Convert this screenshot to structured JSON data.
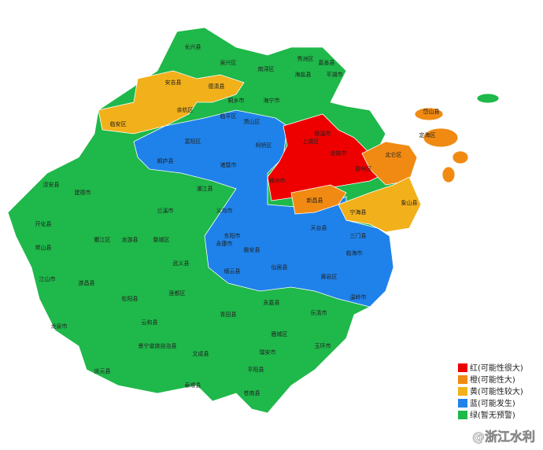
{
  "legend": [
    {
      "color": "#ee0000",
      "label": "红(可能性很大)"
    },
    {
      "color": "#f08a12",
      "label": "橙(可能性大)"
    },
    {
      "color": "#f2b01b",
      "label": "黄(可能性较大)"
    },
    {
      "color": "#1f82ea",
      "label": "蓝(可能发生)"
    },
    {
      "color": "#1fb84a",
      "label": "绿(暂无预警)"
    }
  ],
  "regions": [
    {
      "name": "长兴县",
      "color": "#1fb84a"
    },
    {
      "name": "吴兴区",
      "color": "#1fb84a"
    },
    {
      "name": "南浔区",
      "color": "#1fb84a"
    },
    {
      "name": "秀洲区",
      "color": "#1fb84a"
    },
    {
      "name": "嘉善县",
      "color": "#1fb84a"
    },
    {
      "name": "平湖市",
      "color": "#1fb84a"
    },
    {
      "name": "海盐县",
      "color": "#1fb84a"
    },
    {
      "name": "海宁市",
      "color": "#1fb84a"
    },
    {
      "name": "桐乡市",
      "color": "#1fb84a"
    },
    {
      "name": "安吉县",
      "color": "#f2b01b"
    },
    {
      "name": "德清县",
      "color": "#f2b01b"
    },
    {
      "name": "临安区",
      "color": "#f2b01b"
    },
    {
      "name": "余杭区",
      "color": "#f2b01b"
    },
    {
      "name": "临平区",
      "color": "#1fb84a"
    },
    {
      "name": "萧山区",
      "color": "#1fb84a"
    },
    {
      "name": "富阳区",
      "color": "#1f82ea"
    },
    {
      "name": "桐庐县",
      "color": "#1f82ea"
    },
    {
      "name": "诸暨市",
      "color": "#1f82ea"
    },
    {
      "name": "柯桥区",
      "color": "#1f82ea"
    },
    {
      "name": "上虞区",
      "color": "#ee0000"
    },
    {
      "name": "余姚市",
      "color": "#ee0000"
    },
    {
      "name": "慈溪市",
      "color": "#ee0000"
    },
    {
      "name": "嵊州市",
      "color": "#ee0000"
    },
    {
      "name": "新昌县",
      "color": "#f08a12"
    },
    {
      "name": "鄞州区",
      "color": "#f08a12"
    },
    {
      "name": "北仑区",
      "color": "#f08a12"
    },
    {
      "name": "定海区",
      "color": "#f08a12"
    },
    {
      "name": "岱山县",
      "color": "#f08a12"
    },
    {
      "name": "宁海县",
      "color": "#f2b01b"
    },
    {
      "name": "象山县",
      "color": "#f2b01b"
    },
    {
      "name": "淳安县",
      "color": "#1fb84a"
    },
    {
      "name": "建德市",
      "color": "#1fb84a"
    },
    {
      "name": "浦江县",
      "color": "#1fb84a"
    },
    {
      "name": "兰溪市",
      "color": "#1fb84a"
    },
    {
      "name": "义乌市",
      "color": "#1fb84a"
    },
    {
      "name": "东阳市",
      "color": "#1f82ea"
    },
    {
      "name": "磐安县",
      "color": "#1f82ea"
    },
    {
      "name": "天台县",
      "color": "#1f82ea"
    },
    {
      "name": "三门县",
      "color": "#1f82ea"
    },
    {
      "name": "仙居县",
      "color": "#1f82ea"
    },
    {
      "name": "临海市",
      "color": "#1f82ea"
    },
    {
      "name": "永康市",
      "color": "#1f82ea"
    },
    {
      "name": "缙云县",
      "color": "#1f82ea"
    },
    {
      "name": "黄岩区",
      "color": "#1f82ea"
    },
    {
      "name": "温岭市",
      "color": "#1f82ea"
    },
    {
      "name": "开化县",
      "color": "#1fb84a"
    },
    {
      "name": "常山县",
      "color": "#1fb84a"
    },
    {
      "name": "衢江区",
      "color": "#1fb84a"
    },
    {
      "name": "龙游县",
      "color": "#1fb84a"
    },
    {
      "name": "婺城区",
      "color": "#1fb84a"
    },
    {
      "name": "武义县",
      "color": "#1fb84a"
    },
    {
      "name": "江山市",
      "color": "#1fb84a"
    },
    {
      "name": "遂昌县",
      "color": "#1fb84a"
    },
    {
      "name": "松阳县",
      "color": "#1fb84a"
    },
    {
      "name": "莲都区",
      "color": "#1fb84a"
    },
    {
      "name": "青田县",
      "color": "#1fb84a"
    },
    {
      "name": "永嘉县",
      "color": "#1fb84a"
    },
    {
      "name": "乐清市",
      "color": "#1fb84a"
    },
    {
      "name": "龙泉市",
      "color": "#1fb84a"
    },
    {
      "name": "云和县",
      "color": "#1fb84a"
    },
    {
      "name": "景宁畲族自治县",
      "color": "#1fb84a"
    },
    {
      "name": "庆元县",
      "color": "#1fb84a"
    },
    {
      "name": "泰顺县",
      "color": "#1fb84a"
    },
    {
      "name": "文成县",
      "color": "#1fb84a"
    },
    {
      "name": "瑞安市",
      "color": "#1fb84a"
    },
    {
      "name": "平阳县",
      "color": "#1fb84a"
    },
    {
      "name": "苍南县",
      "color": "#1fb84a"
    },
    {
      "name": "鹿城区",
      "color": "#1fb84a"
    },
    {
      "name": "玉环市",
      "color": "#1fb84a"
    }
  ],
  "watermark": "@浙江水利"
}
